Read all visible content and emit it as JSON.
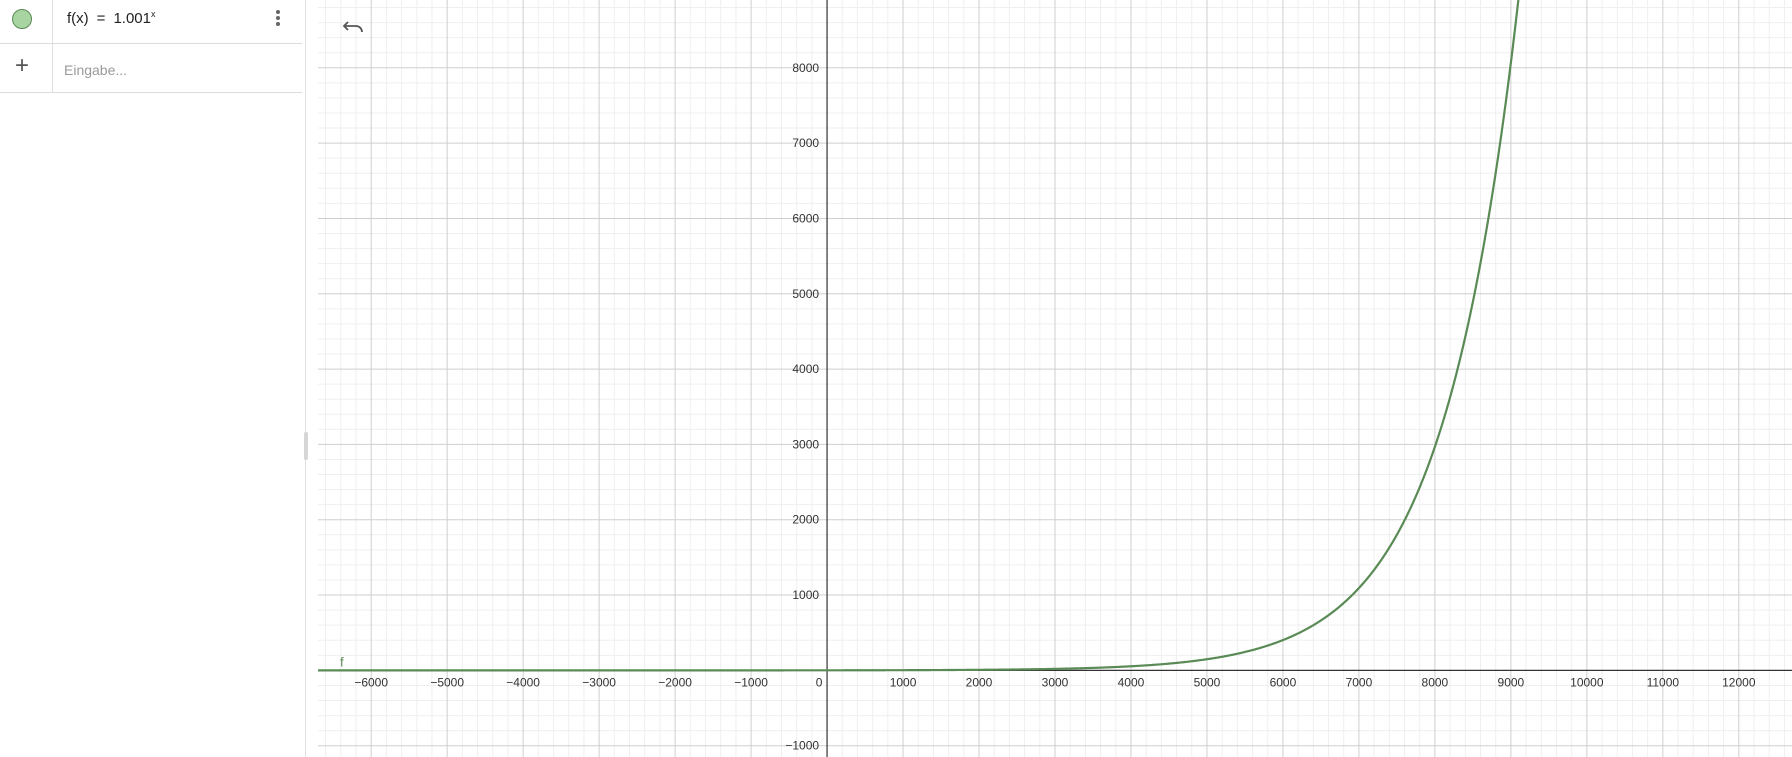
{
  "algebra": {
    "function_row": {
      "lhs": "f(x)",
      "eq": "=",
      "base": "1.001",
      "exponent": "x",
      "color": "#5a8a55",
      "marble_color": "#a7d4a0"
    },
    "input_row": {
      "placeholder": "Eingabe..."
    }
  },
  "graphics": {
    "function_label": "f"
  },
  "chart_data": {
    "type": "line",
    "function": "f(x) = 1.001^x",
    "base": 1.001,
    "x_range": [
      -6700,
      12700
    ],
    "y_range": [
      -1150,
      8900
    ],
    "x_ticks": [
      -6000,
      -5000,
      -4000,
      -3000,
      -2000,
      -1000,
      0,
      1000,
      2000,
      3000,
      4000,
      5000,
      6000,
      7000,
      8000,
      9000,
      10000,
      11000,
      12000
    ],
    "x_tick_labels": [
      "−6000",
      "−5000",
      "−4000",
      "−3000",
      "−2000",
      "−1000",
      "0",
      "1000",
      "2000",
      "3000",
      "4000",
      "5000",
      "6000",
      "7000",
      "8000",
      "9000",
      "10000",
      "11000",
      "12000"
    ],
    "y_ticks": [
      -1000,
      1000,
      2000,
      3000,
      4000,
      5000,
      6000,
      7000,
      8000
    ],
    "y_tick_labels": [
      "−1000",
      "1000",
      "2000",
      "3000",
      "4000",
      "5000",
      "6000",
      "7000",
      "8000"
    ],
    "grid": true,
    "minor_grid_divisions": 5,
    "series": [
      {
        "name": "f",
        "color": "#5a8a55"
      }
    ]
  }
}
